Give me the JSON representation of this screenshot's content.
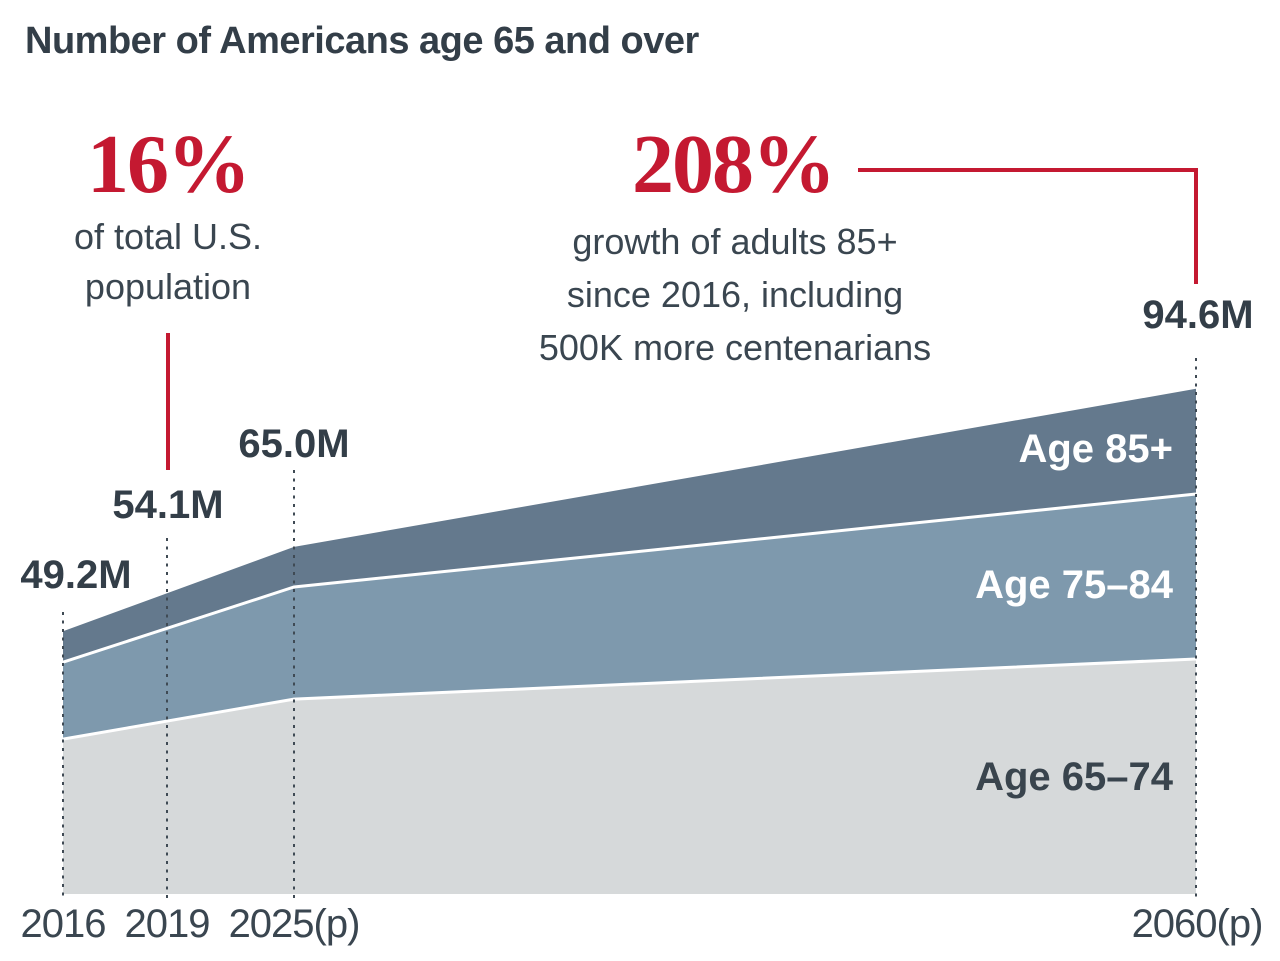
{
  "title": "Number of Americans age 65 and over",
  "annotations": {
    "pct_total": {
      "value": "16%",
      "lines": [
        "of total U.S.",
        "population"
      ]
    },
    "pct_growth": {
      "value": "208%",
      "lines": [
        "growth of adults 85+",
        "since 2016, including",
        "500K more centenarians"
      ]
    }
  },
  "chart_data": {
    "type": "area",
    "stacked": true,
    "title": "Number of Americans age 65 and over",
    "unit": "millions of people",
    "x": [
      "2016",
      "2019",
      "2025(p)",
      "2060(p)"
    ],
    "totals_millions": [
      49.2,
      54.1,
      65.0,
      94.6
    ],
    "total_labels": [
      "49.2M",
      "54.1M",
      "65.0M",
      "94.6M"
    ],
    "series": [
      {
        "name": "Age 65–74",
        "values": [
          29.0,
          31.5,
          36.5,
          44.0
        ]
      },
      {
        "name": "Age 75–84",
        "values": [
          14.4,
          16.5,
          21.0,
          30.9
        ]
      },
      {
        "name": "Age 85+",
        "values": [
          5.8,
          6.1,
          7.5,
          19.7
        ]
      }
    ],
    "ylim": [
      0,
      100
    ],
    "grid": "off",
    "legend_position": "labels inside bands, right side"
  },
  "colors": {
    "accent_red": "#c41931",
    "band_85plus": "#64798d",
    "band_75_84": "#7e99ad",
    "band_65_74": "#d6d9da",
    "boundary_stroke": "#ffffff",
    "text_dark": "#333e48",
    "tick_dot": "#3f4a54"
  }
}
